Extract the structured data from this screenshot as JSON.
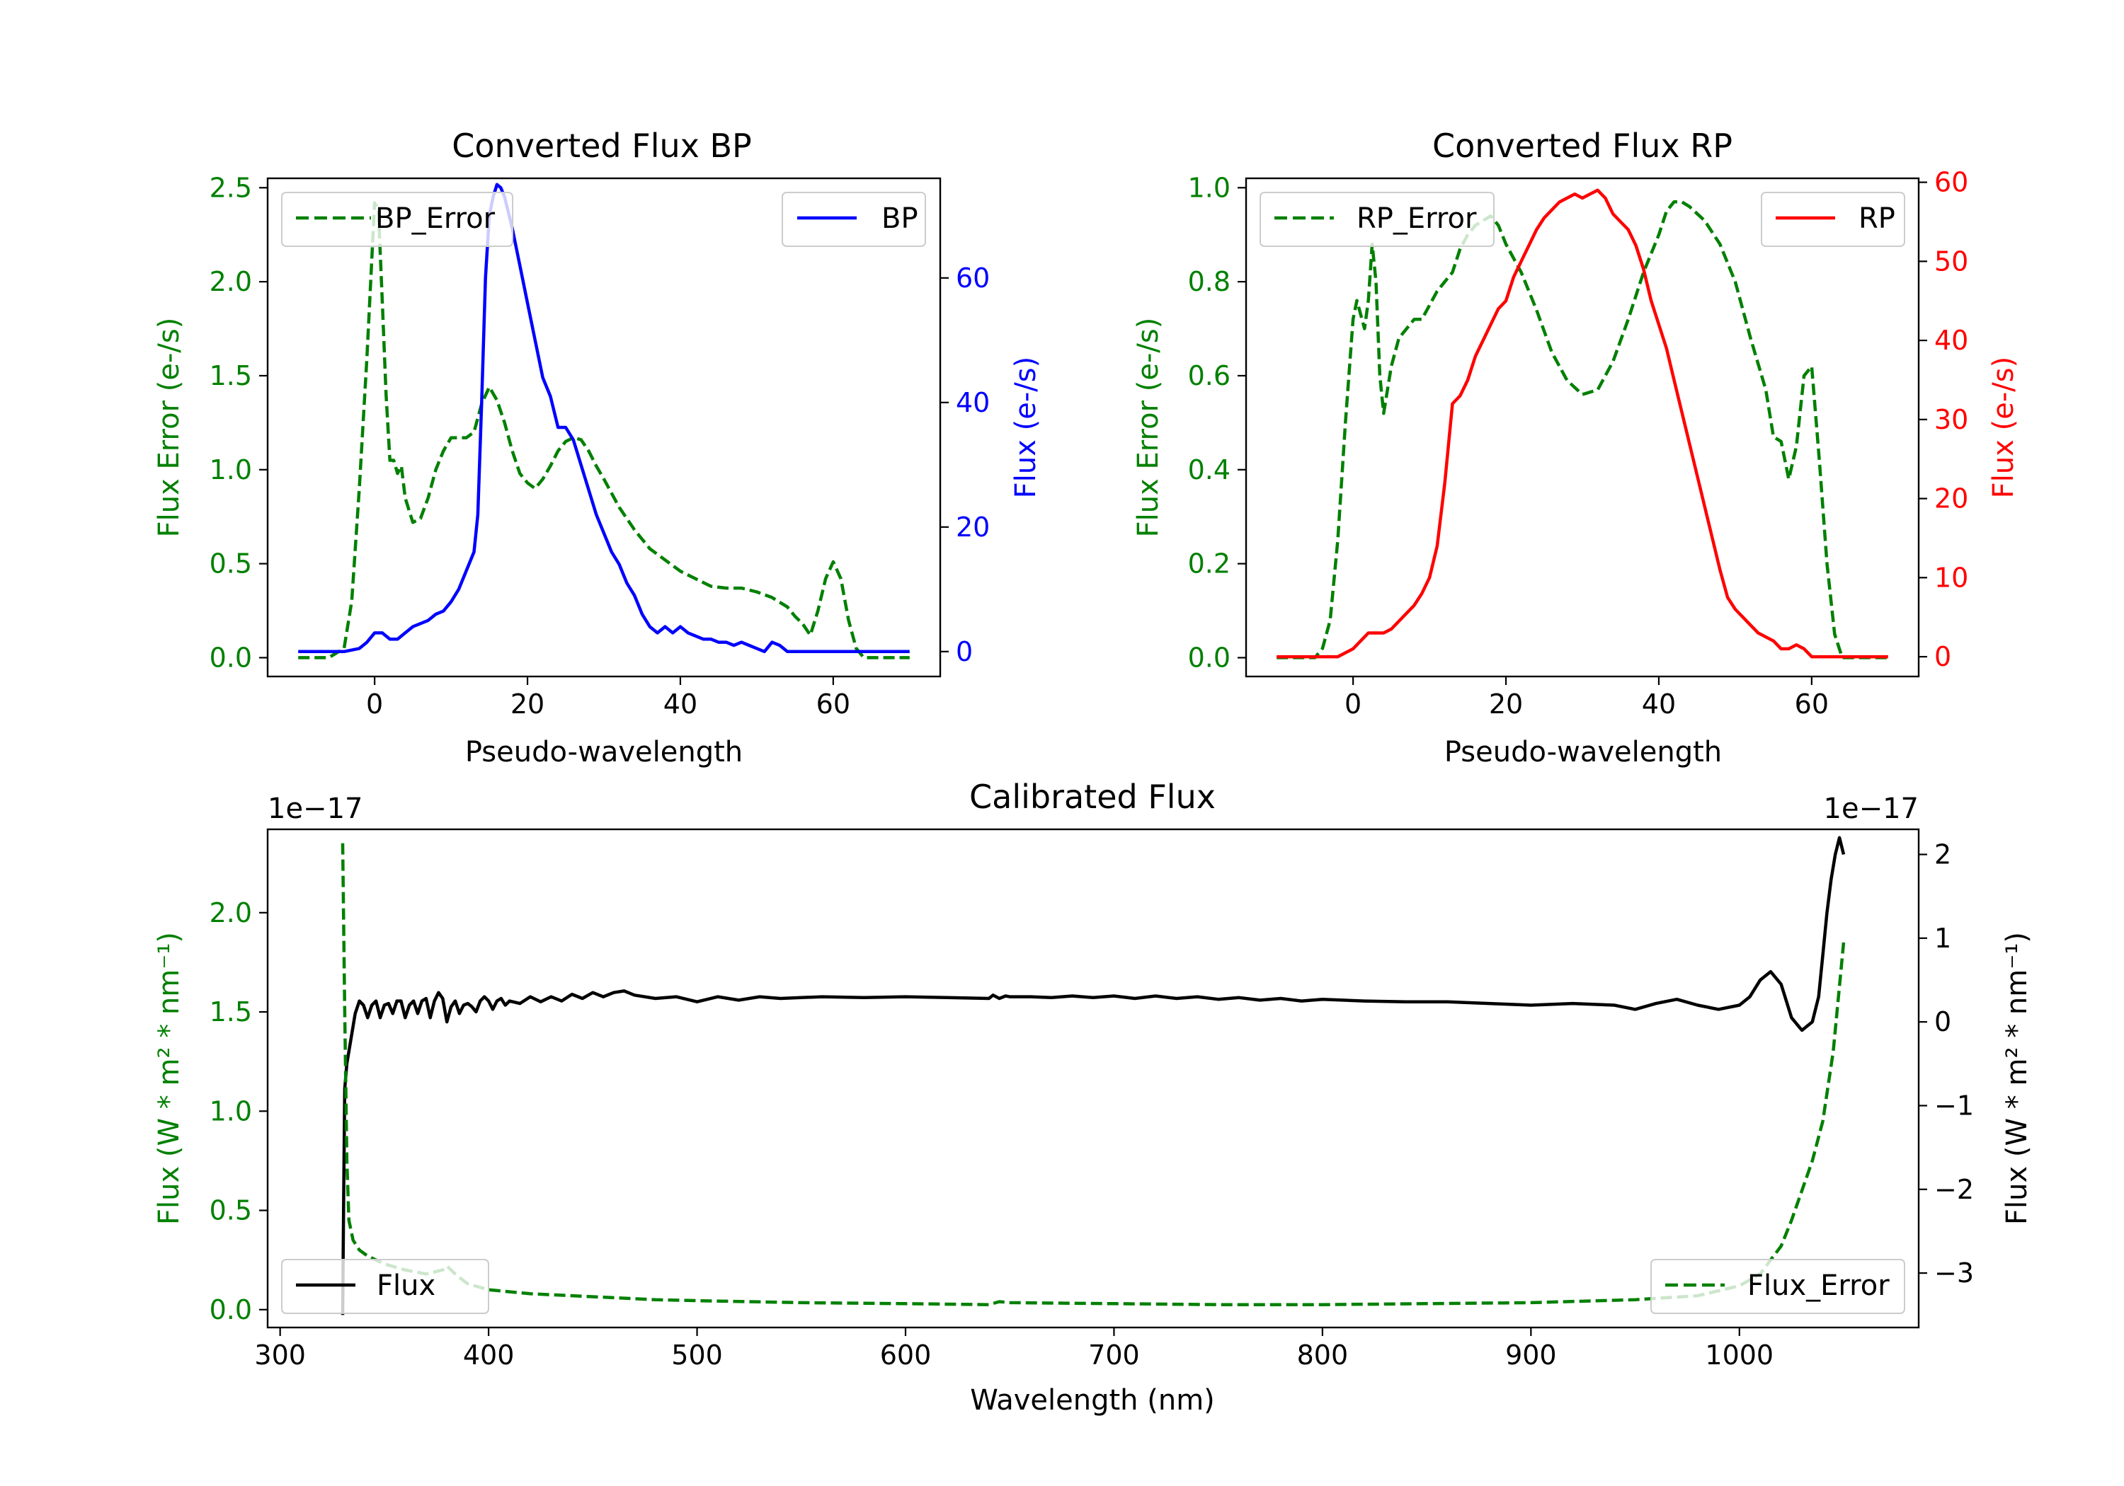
{
  "colors": {
    "green": "#008000",
    "blue": "#0000ff",
    "red": "#ff0000",
    "black": "#000000"
  },
  "chart_data": [
    {
      "id": "bp",
      "type": "line",
      "title": "Converted Flux BP",
      "xlabel": "Pseudo-wavelength",
      "xlim": [
        -14,
        74
      ],
      "xticks": [
        0,
        20,
        40,
        60
      ],
      "xtick_labels": [
        "0",
        "20",
        "40",
        "60"
      ],
      "left_axis": {
        "label": "Flux Error (e-/s)",
        "color": "#008000",
        "ylim": [
          -0.1,
          2.55
        ],
        "ticks": [
          0.0,
          0.5,
          1.0,
          1.5,
          2.0,
          2.5
        ],
        "tick_labels": [
          "0.0",
          "0.5",
          "1.0",
          "1.5",
          "2.0",
          "2.5"
        ]
      },
      "right_axis": {
        "label": "Flux (e-/s)",
        "color": "#0000ff",
        "ylim": [
          -4,
          76
        ],
        "ticks": [
          0,
          20,
          40,
          60
        ],
        "tick_labels": [
          "0",
          "20",
          "40",
          "60"
        ]
      },
      "series": [
        {
          "name": "BP_Error",
          "axis": "left",
          "color": "#008000",
          "dash": true,
          "legend_loc": "upper left",
          "x": [
            -10,
            -6,
            -4,
            -3,
            -2,
            -1,
            0,
            0.5,
            1,
            1.5,
            2,
            2.5,
            3,
            3.5,
            4,
            5,
            6,
            7,
            8,
            9,
            10,
            11,
            12,
            13,
            14,
            15,
            16,
            17,
            18,
            19,
            20,
            21,
            22,
            23,
            24,
            25,
            26,
            27,
            28,
            29,
            30,
            32,
            34,
            36,
            38,
            40,
            42,
            44,
            46,
            48,
            50,
            52,
            54,
            55,
            56,
            57,
            58,
            59,
            60,
            61,
            62,
            63,
            64,
            66,
            68,
            70
          ],
          "values": [
            0.0,
            0.0,
            0.05,
            0.3,
            0.9,
            1.6,
            2.42,
            2.38,
            1.9,
            1.4,
            1.05,
            1.05,
            0.98,
            1.02,
            0.85,
            0.72,
            0.74,
            0.85,
            1.0,
            1.1,
            1.17,
            1.17,
            1.17,
            1.2,
            1.35,
            1.44,
            1.37,
            1.25,
            1.1,
            0.98,
            0.93,
            0.9,
            0.95,
            1.02,
            1.1,
            1.15,
            1.17,
            1.16,
            1.1,
            1.02,
            0.95,
            0.8,
            0.68,
            0.58,
            0.52,
            0.46,
            0.42,
            0.38,
            0.37,
            0.37,
            0.35,
            0.32,
            0.27,
            0.22,
            0.18,
            0.12,
            0.25,
            0.42,
            0.51,
            0.42,
            0.2,
            0.05,
            0.0,
            0.0,
            0.0,
            0.0
          ]
        },
        {
          "name": "BP",
          "axis": "right",
          "color": "#0000ff",
          "dash": false,
          "legend_loc": "upper right",
          "x": [
            -10,
            -6,
            -4,
            -2,
            -1,
            0,
            1,
            2,
            3,
            4,
            5,
            6,
            7,
            8,
            9,
            10,
            11,
            12,
            13,
            13.5,
            14,
            14.5,
            15,
            15.5,
            16,
            16.5,
            17,
            18,
            19,
            20,
            21,
            22,
            23,
            24,
            25,
            26,
            27,
            28,
            29,
            30,
            31,
            32,
            33,
            34,
            35,
            36,
            37,
            38,
            39,
            40,
            41,
            42,
            43,
            44,
            45,
            46,
            47,
            48,
            49,
            50,
            51,
            52,
            53,
            54,
            55,
            56,
            58,
            60,
            62,
            64,
            66,
            68,
            70
          ],
          "values": [
            0,
            0,
            0,
            0.5,
            1.5,
            3,
            3,
            2,
            2,
            3,
            4,
            4.5,
            5,
            6,
            6.5,
            8,
            10,
            13,
            16,
            22,
            40,
            60,
            70,
            73,
            75,
            74.5,
            73,
            68,
            62,
            56,
            50,
            44,
            41,
            36,
            36,
            34,
            30,
            26,
            22,
            19,
            16,
            14,
            11,
            9,
            6,
            4,
            3,
            4,
            3,
            4,
            3,
            2.5,
            2,
            2,
            1.5,
            1.5,
            1,
            1.5,
            1,
            0.5,
            0,
            1.5,
            1,
            0,
            0,
            0,
            0,
            0,
            0,
            0,
            0,
            0,
            0
          ]
        }
      ]
    },
    {
      "id": "rp",
      "type": "line",
      "title": "Converted Flux RP",
      "xlabel": "Pseudo-wavelength",
      "xlim": [
        -14,
        74
      ],
      "xticks": [
        0,
        20,
        40,
        60
      ],
      "xtick_labels": [
        "0",
        "20",
        "40",
        "60"
      ],
      "left_axis": {
        "label": "Flux Error (e-/s)",
        "color": "#008000",
        "ylim": [
          -0.04,
          1.02
        ],
        "ticks": [
          0.0,
          0.2,
          0.4,
          0.6,
          0.8,
          1.0
        ],
        "tick_labels": [
          "0.0",
          "0.2",
          "0.4",
          "0.6",
          "0.8",
          "1.0"
        ]
      },
      "right_axis": {
        "label": "Flux (e-/s)",
        "color": "#ff0000",
        "ylim": [
          -2.5,
          60.5
        ],
        "ticks": [
          0,
          10,
          20,
          30,
          40,
          50,
          60
        ],
        "tick_labels": [
          "0",
          "10",
          "20",
          "30",
          "40",
          "50",
          "60"
        ]
      },
      "series": [
        {
          "name": "RP_Error",
          "axis": "left",
          "color": "#008000",
          "dash": true,
          "legend_loc": "upper left",
          "x": [
            -10,
            -5,
            -4,
            -3,
            -2,
            -1,
            0,
            0.5,
            1,
            1.5,
            2,
            2.5,
            3,
            3.5,
            4,
            5,
            6,
            7,
            8,
            9,
            10,
            11,
            12,
            13,
            14,
            15,
            16,
            17,
            18,
            19,
            20,
            22,
            24,
            26,
            28,
            30,
            32,
            34,
            36,
            38,
            40,
            41,
            42,
            43,
            44,
            46,
            48,
            50,
            52,
            54,
            55,
            56,
            57,
            58,
            59,
            60,
            61,
            62,
            63,
            64,
            66,
            68,
            70
          ],
          "values": [
            0.0,
            0.0,
            0.02,
            0.08,
            0.25,
            0.5,
            0.72,
            0.76,
            0.73,
            0.7,
            0.76,
            0.88,
            0.8,
            0.6,
            0.52,
            0.62,
            0.68,
            0.7,
            0.72,
            0.72,
            0.75,
            0.78,
            0.8,
            0.82,
            0.87,
            0.9,
            0.92,
            0.93,
            0.94,
            0.92,
            0.88,
            0.82,
            0.74,
            0.65,
            0.59,
            0.56,
            0.57,
            0.63,
            0.72,
            0.82,
            0.9,
            0.95,
            0.97,
            0.97,
            0.96,
            0.93,
            0.88,
            0.8,
            0.68,
            0.57,
            0.47,
            0.46,
            0.38,
            0.45,
            0.6,
            0.62,
            0.42,
            0.2,
            0.05,
            0.0,
            0.0,
            0.0,
            0.0
          ]
        },
        {
          "name": "RP",
          "axis": "right",
          "color": "#ff0000",
          "dash": false,
          "legend_loc": "upper right",
          "x": [
            -10,
            -5,
            -2,
            -1,
            0,
            1,
            2,
            3,
            4,
            5,
            6,
            7,
            8,
            9,
            10,
            11,
            12,
            13,
            14,
            15,
            16,
            17,
            18,
            19,
            20,
            21,
            22,
            23,
            24,
            25,
            26,
            27,
            28,
            29,
            30,
            31,
            32,
            33,
            34,
            35,
            36,
            37,
            38,
            39,
            40,
            41,
            42,
            43,
            44,
            45,
            46,
            47,
            48,
            49,
            50,
            51,
            52,
            53,
            54,
            55,
            56,
            57,
            58,
            59,
            60,
            62,
            64,
            66,
            68,
            70
          ],
          "values": [
            0,
            0,
            0,
            0.5,
            1,
            2,
            3,
            3,
            3,
            3.5,
            4.5,
            5.5,
            6.5,
            8,
            10,
            14,
            22,
            32,
            33,
            35,
            38,
            40,
            42,
            44,
            45,
            48,
            50,
            52,
            54,
            55.5,
            56.5,
            57.5,
            58,
            58.5,
            58,
            58.5,
            59,
            58,
            56,
            55,
            54,
            52,
            49,
            45,
            42,
            39,
            35,
            31,
            27,
            23,
            19,
            15,
            11,
            7.5,
            6,
            5,
            4,
            3,
            2.5,
            2,
            1,
            1,
            1.5,
            1,
            0,
            0,
            0,
            0,
            0,
            0
          ]
        }
      ]
    },
    {
      "id": "cal",
      "type": "line",
      "title": "Calibrated Flux",
      "xlabel": "Wavelength (nm)",
      "xlim": [
        294,
        1086
      ],
      "xticks": [
        300,
        400,
        500,
        600,
        700,
        800,
        900,
        1000
      ],
      "xtick_labels": [
        "300",
        "400",
        "500",
        "600",
        "700",
        "800",
        "900",
        "1000"
      ],
      "left_axis": {
        "label": "Flux (W * m² * nm⁻¹)",
        "color": "#008000",
        "offset_text": "1e−17",
        "ylim": [
          -0.09,
          2.42
        ],
        "ticks": [
          0.0,
          0.5,
          1.0,
          1.5,
          2.0
        ],
        "tick_labels": [
          "0.0",
          "0.5",
          "1.0",
          "1.5",
          "2.0"
        ]
      },
      "right_axis": {
        "label": "Flux (W * m² * nm⁻¹)",
        "color": "#000000",
        "offset_text": "1e−17",
        "ylim": [
          -3.65,
          2.3
        ],
        "ticks": [
          -3,
          -2,
          -1,
          0,
          1,
          2
        ],
        "tick_labels": [
          "−3",
          "−2",
          "−1",
          "0",
          "1",
          "2"
        ]
      },
      "series": [
        {
          "name": "Flux",
          "axis": "right",
          "color": "#000000",
          "dash": false,
          "legend_loc": "lower left",
          "x": [
            330,
            330.5,
            331,
            332,
            334,
            336,
            338,
            340,
            342,
            344,
            346,
            348,
            350,
            352,
            354,
            356,
            358,
            360,
            362,
            364,
            366,
            368,
            370,
            372,
            374,
            376,
            378,
            380,
            382,
            384,
            386,
            388,
            390,
            392,
            394,
            396,
            398,
            400,
            402,
            404,
            406,
            408,
            410,
            415,
            420,
            425,
            430,
            435,
            440,
            445,
            450,
            455,
            460,
            465,
            470,
            480,
            490,
            500,
            510,
            520,
            530,
            540,
            550,
            560,
            580,
            600,
            620,
            640,
            642,
            645,
            648,
            650,
            660,
            670,
            680,
            690,
            700,
            710,
            720,
            730,
            740,
            750,
            760,
            770,
            780,
            790,
            800,
            820,
            840,
            860,
            880,
            900,
            920,
            940,
            950,
            960,
            970,
            980,
            990,
            1000,
            1005,
            1010,
            1015,
            1020,
            1025,
            1030,
            1035,
            1038,
            1040,
            1042,
            1044,
            1046,
            1048,
            1050
          ],
          "values": [
            -3.5,
            -2,
            -0.8,
            -0.5,
            -0.2,
            0.1,
            0.25,
            0.2,
            0.05,
            0.2,
            0.25,
            0.05,
            0.2,
            0.22,
            0.1,
            0.25,
            0.25,
            0.05,
            0.2,
            0.25,
            0.1,
            0.25,
            0.28,
            0.05,
            0.25,
            0.35,
            0.28,
            0.0,
            0.18,
            0.25,
            0.1,
            0.2,
            0.22,
            0.18,
            0.12,
            0.25,
            0.3,
            0.25,
            0.15,
            0.25,
            0.28,
            0.2,
            0.25,
            0.22,
            0.3,
            0.24,
            0.3,
            0.25,
            0.33,
            0.28,
            0.35,
            0.3,
            0.35,
            0.37,
            0.32,
            0.28,
            0.3,
            0.24,
            0.3,
            0.26,
            0.3,
            0.28,
            0.29,
            0.3,
            0.29,
            0.3,
            0.29,
            0.28,
            0.32,
            0.28,
            0.31,
            0.3,
            0.3,
            0.29,
            0.31,
            0.29,
            0.31,
            0.28,
            0.31,
            0.28,
            0.3,
            0.27,
            0.29,
            0.26,
            0.28,
            0.25,
            0.27,
            0.25,
            0.24,
            0.24,
            0.22,
            0.2,
            0.22,
            0.2,
            0.15,
            0.22,
            0.27,
            0.2,
            0.15,
            0.2,
            0.3,
            0.5,
            0.6,
            0.45,
            0.05,
            -0.1,
            0.0,
            0.3,
            0.8,
            1.3,
            1.7,
            2.0,
            2.2,
            2.0
          ]
        },
        {
          "name": "Flux_Error",
          "axis": "left",
          "color": "#008000",
          "dash": true,
          "legend_loc": "lower right",
          "x": [
            330,
            331,
            332,
            333,
            335,
            338,
            342,
            346,
            350,
            360,
            370,
            378,
            380,
            385,
            390,
            400,
            420,
            440,
            460,
            480,
            500,
            550,
            600,
            640,
            645,
            650,
            700,
            750,
            800,
            850,
            900,
            950,
            980,
            1000,
            1010,
            1015,
            1020,
            1025,
            1030,
            1035,
            1040,
            1045,
            1050
          ],
          "values": [
            2.35,
            1.5,
            0.75,
            0.45,
            0.35,
            0.3,
            0.27,
            0.25,
            0.23,
            0.2,
            0.18,
            0.2,
            0.22,
            0.17,
            0.13,
            0.1,
            0.08,
            0.07,
            0.06,
            0.05,
            0.045,
            0.035,
            0.03,
            0.025,
            0.04,
            0.035,
            0.03,
            0.025,
            0.025,
            0.03,
            0.035,
            0.05,
            0.07,
            0.12,
            0.18,
            0.25,
            0.32,
            0.45,
            0.6,
            0.75,
            0.95,
            1.3,
            1.85
          ]
        }
      ]
    }
  ]
}
